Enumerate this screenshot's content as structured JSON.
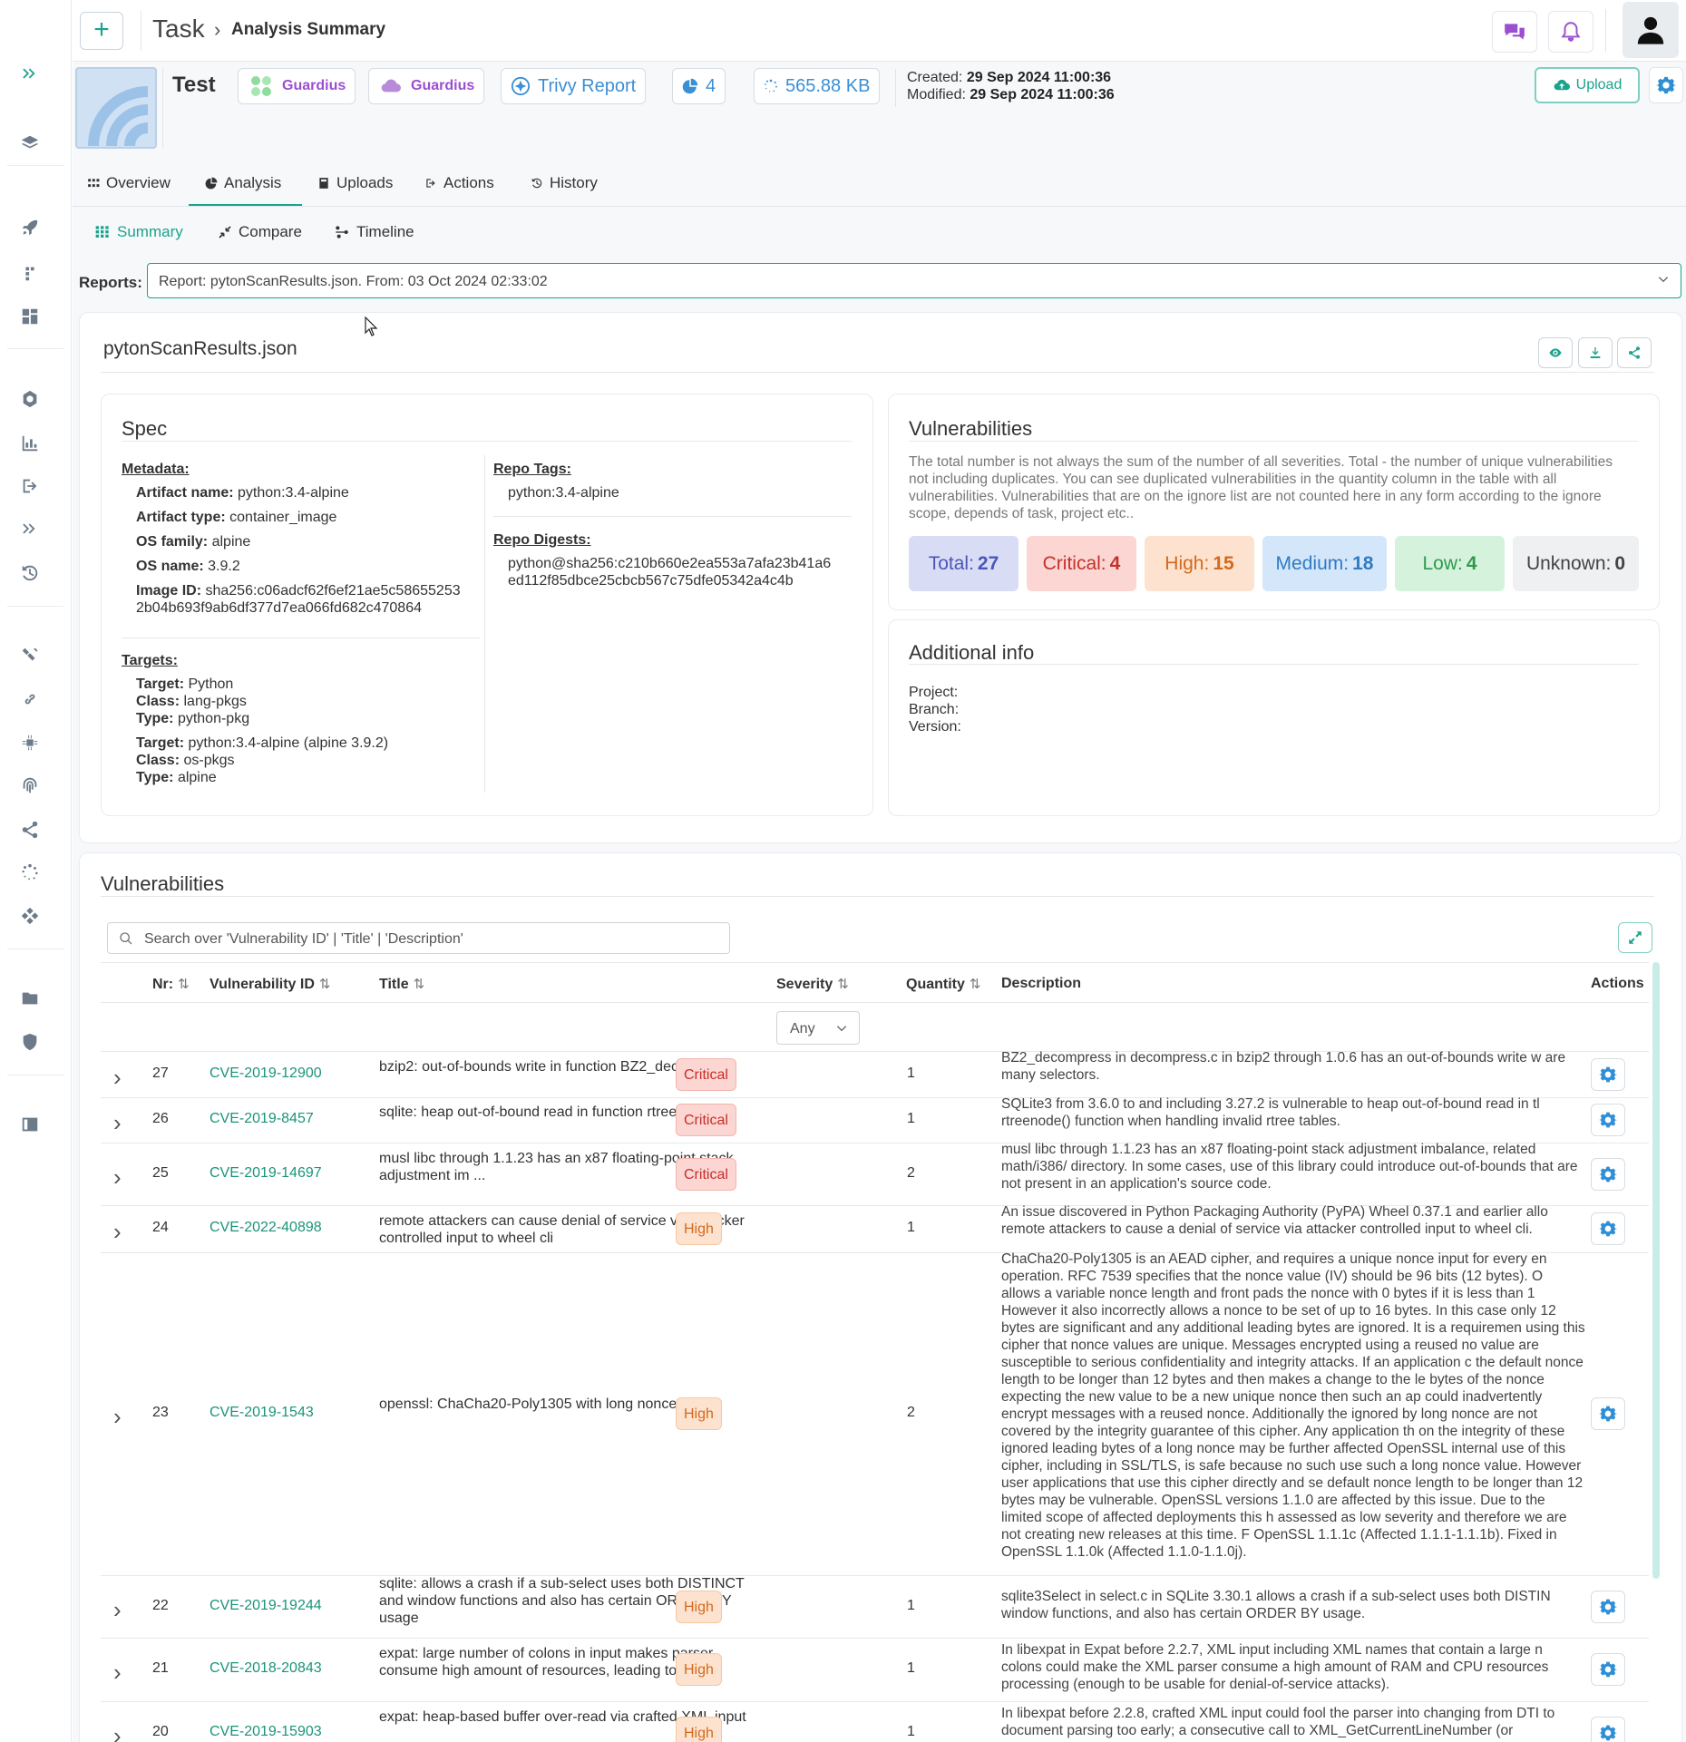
{
  "breadcrumb": {
    "root": "Task",
    "current": "Analysis Summary"
  },
  "header": {
    "task_name": "Test",
    "chips": [
      {
        "label": "Guardius",
        "icon": "team-icon"
      },
      {
        "label": "Guardius",
        "icon": "cloud-icon"
      },
      {
        "label": "Trivy Report",
        "icon": "trivy-icon"
      },
      {
        "label": "4",
        "icon": "pie-icon"
      },
      {
        "label": "565.88 KB",
        "icon": "spinner-icon"
      }
    ],
    "created_label": "Created:",
    "created_value": "29 Sep 2024 11:00:36",
    "modified_label": "Modified:",
    "modified_value": "29 Sep 2024 11:00:36",
    "upload_label": "Upload"
  },
  "tabs": [
    "Overview",
    "Analysis",
    "Uploads",
    "Actions",
    "History"
  ],
  "subtabs": [
    "Summary",
    "Compare",
    "Timeline"
  ],
  "reports": {
    "label": "Reports:",
    "selected": "Report: pytonScanResults.json. From: 03 Oct 2024 02:33:02"
  },
  "report": {
    "file_name": "pytonScanResults.json",
    "spec": {
      "title": "Spec",
      "metadata_label": "Metadata:",
      "artifact_name_label": "Artifact name:",
      "artifact_name": "python:3.4-alpine",
      "artifact_type_label": "Artifact type:",
      "artifact_type": "container_image",
      "os_family_label": "OS family:",
      "os_family": "alpine",
      "os_name_label": "OS name:",
      "os_name": "3.9.2",
      "image_id_label": "Image ID:",
      "image_id_1": "sha256:c06adcf62f6ef21ae5c58655253",
      "image_id_2": "2b04b693f9ab6df377d7ea066fd682c470864",
      "targets_label": "Targets:",
      "target_label": "Target:",
      "class_label": "Class:",
      "type_label": "Type:",
      "targets": [
        {
          "target": "Python",
          "class": "lang-pkgs",
          "type": "python-pkg"
        },
        {
          "target": "python:3.4-alpine (alpine 3.9.2)",
          "class": "os-pkgs",
          "type": "alpine"
        }
      ],
      "repo_tags_label": "Repo Tags:",
      "repo_tags": "python:3.4-alpine",
      "repo_digests_label": "Repo Digests:",
      "repo_digest_1": "python@sha256:c210b660e2ea553a7afa23b41a6",
      "repo_digest_2": "ed112f85dbce25cbcb567c75dfe05342a4c4b"
    },
    "vulnerabilities_summary": {
      "title": "Vulnerabilities",
      "description": "The total number is not always the sum of the number of all severities. Total - the number of unique vulnerabilities not including duplicates. You can see duplicated vulnerabilities in the quantity column in the table with all vulnerabilities. Vulnerabilities that are on the ignore list are not counted here in any form according to the ignore scope, depends of task, project etc..",
      "counts": [
        {
          "label": "Total:",
          "value": "27",
          "bg": "#d9dcf5",
          "fg": "#4a56b8"
        },
        {
          "label": "Critical:",
          "value": "4",
          "bg": "#fbd6d3",
          "fg": "#c6302a"
        },
        {
          "label": "High:",
          "value": "15",
          "bg": "#fde3cf",
          "fg": "#d2691e"
        },
        {
          "label": "Medium:",
          "value": "18",
          "bg": "#d4e6f9",
          "fg": "#2f7bc4"
        },
        {
          "label": "Low:",
          "value": "4",
          "bg": "#d4f2dc",
          "fg": "#2e9a4d"
        },
        {
          "label": "Unknown:",
          "value": "0",
          "bg": "#eef0f2",
          "fg": "#444"
        }
      ]
    },
    "additional_info": {
      "title": "Additional info",
      "project_label": "Project:",
      "branch_label": "Branch:",
      "version_label": "Version:"
    }
  },
  "vuln_table": {
    "title": "Vulnerabilities",
    "search_placeholder": "Search over 'Vulnerability ID' | 'Title' | 'Description'",
    "columns": [
      "Nr:",
      "Vulnerability ID",
      "Title",
      "Severity",
      "Quantity",
      "Description",
      "Actions"
    ],
    "severity_filter": "Any",
    "rows": [
      {
        "nr": "27",
        "id": "CVE-2019-12900",
        "title": "bzip2: out-of-bounds write in function BZ2_decompress",
        "severity": "Critical",
        "quantity": "1",
        "description": "BZ2_decompress in decompress.c in bzip2 through 1.0.6 has an out-of-bounds write w are many selectors."
      },
      {
        "nr": "26",
        "id": "CVE-2019-8457",
        "title": "sqlite: heap out-of-bound read in function rtreenode()",
        "severity": "Critical",
        "quantity": "1",
        "description": "SQLite3 from 3.6.0 to and including 3.27.2 is vulnerable to heap out-of-bound read in tl rtreenode() function when handling invalid rtree tables."
      },
      {
        "nr": "25",
        "id": "CVE-2019-14697",
        "title": "musl libc through 1.1.23 has an x87 floating-point stack adjustment im ...",
        "severity": "Critical",
        "quantity": "2",
        "description": "musl libc through 1.1.23 has an x87 floating-point stack adjustment imbalance, related math/i386/ directory. In some cases, use of this library could introduce out-of-bounds that are not present in an application's source code."
      },
      {
        "nr": "24",
        "id": "CVE-2022-40898",
        "title": "remote attackers can cause denial of service via attacker controlled input to wheel cli",
        "severity": "High",
        "quantity": "1",
        "description": "An issue discovered in Python Packaging Authority (PyPA) Wheel 0.37.1 and earlier allo remote attackers to cause a denial of service via attacker controlled input to wheel cli."
      },
      {
        "nr": "23",
        "id": "CVE-2019-1543",
        "title": "openssl: ChaCha20-Poly1305 with long nonces",
        "severity": "High",
        "quantity": "2",
        "description": "ChaCha20-Poly1305 is an AEAD cipher, and requires a unique nonce input for every en operation. RFC 7539 specifies that the nonce value (IV) should be 96 bits (12 bytes). O allows a variable nonce length and front pads the nonce with 0 bytes if it is less than 1 However it also incorrectly allows a nonce to be set of up to 16 bytes. In this case only 12 bytes are significant and any additional leading bytes are ignored. It is a requiremen using this cipher that nonce values are unique. Messages encrypted using a reused no value are susceptible to serious confidentiality and integrity attacks. If an application c the default nonce length to be longer than 12 bytes and then makes a change to the le bytes of the nonce expecting the new value to be a new unique nonce then such an ap could inadvertently encrypt messages with a reused nonce. Additionally the ignored by long nonce are not covered by the integrity guarantee of this cipher. Any application th on the integrity of these ignored leading bytes of a long nonce may be further affected OpenSSL internal use of this cipher, including in SSL/TLS, is safe because no such use such a long nonce value. However user applications that use this cipher directly and se default nonce length to be longer than 12 bytes may be vulnerable. OpenSSL versions 1.1.0 are affected by this issue. Due to the limited scope of affected deployments this h assessed as low severity and therefore we are not creating new releases at this time. F OpenSSL 1.1.1c (Affected 1.1.1-1.1.1b). Fixed in OpenSSL 1.1.0k (Affected 1.1.0-1.1.0j)."
      },
      {
        "nr": "22",
        "id": "CVE-2019-19244",
        "title": "sqlite: allows a crash if a sub-select uses both DISTINCT and window functions and also has certain ORDER BY usage",
        "severity": "High",
        "quantity": "1",
        "description": "sqlite3Select in select.c in SQLite 3.30.1 allows a crash if a sub-select uses both DISTIN window functions, and also has certain ORDER BY usage."
      },
      {
        "nr": "21",
        "id": "CVE-2018-20843",
        "title": "expat: large number of colons in input makes parser consume high amount of resources, leading to DoS",
        "severity": "High",
        "quantity": "1",
        "description": "In libexpat in Expat before 2.2.7, XML input including XML names that contain a large n colons could make the XML parser consume a high amount of RAM and CPU resources processing (enough to be usable for denial-of-service attacks)."
      },
      {
        "nr": "20",
        "id": "CVE-2019-15903",
        "title": "expat: heap-based buffer over-read via crafted XML input",
        "severity": "High",
        "quantity": "1",
        "description": "In libexpat before 2.2.8, crafted XML input could fool the parser into changing from DTI to document parsing too early; a consecutive call to XML_GetCurrentLineNumber (or"
      }
    ]
  },
  "colors": {
    "accent": "#1ba38d",
    "cve_link": "#1a9479",
    "purple": "#9b4fd0",
    "blue": "#3a8fd6"
  }
}
